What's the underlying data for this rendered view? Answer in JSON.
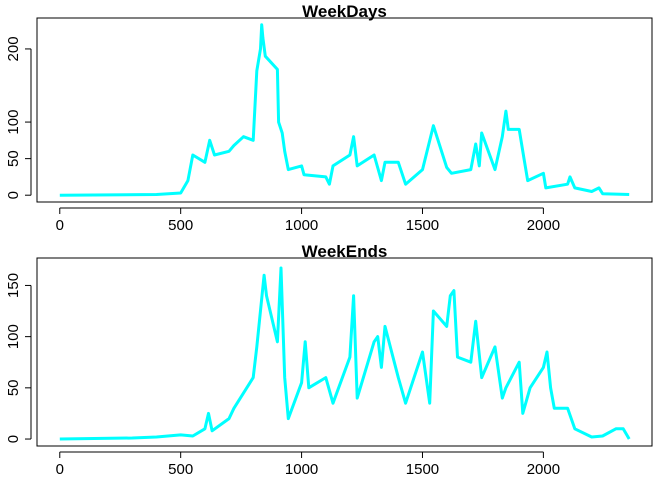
{
  "chart_data": [
    {
      "type": "line",
      "title": "WeekDays",
      "color": "#00FFFF",
      "x": [
        0,
        400,
        500,
        530,
        550,
        600,
        620,
        640,
        700,
        720,
        760,
        800,
        815,
        830,
        835,
        840,
        850,
        900,
        905,
        920,
        930,
        945,
        1000,
        1010,
        1100,
        1115,
        1130,
        1200,
        1215,
        1230,
        1300,
        1330,
        1345,
        1400,
        1430,
        1500,
        1545,
        1600,
        1620,
        1700,
        1720,
        1735,
        1745,
        1800,
        1830,
        1845,
        1855,
        1900,
        1920,
        1935,
        2000,
        2010,
        2100,
        2110,
        2130,
        2200,
        2230,
        2245,
        2355
      ],
      "values": [
        0,
        1,
        3,
        20,
        55,
        45,
        75,
        55,
        60,
        68,
        80,
        75,
        170,
        200,
        233,
        215,
        190,
        172,
        100,
        85,
        60,
        35,
        40,
        28,
        25,
        15,
        40,
        55,
        80,
        40,
        55,
        20,
        45,
        45,
        15,
        35,
        95,
        38,
        30,
        35,
        70,
        40,
        85,
        35,
        80,
        115,
        90,
        90,
        50,
        20,
        30,
        10,
        15,
        25,
        10,
        5,
        10,
        2,
        1
      ],
      "xlim": [
        -94.2,
        2449.2
      ],
      "ylim": [
        -9.3,
        242.3
      ],
      "xticks": [
        0,
        500,
        1000,
        1500,
        2000
      ],
      "yticks": [
        0,
        50,
        100,
        200
      ]
    },
    {
      "type": "line",
      "title": "WeekEnds",
      "color": "#00FFFF",
      "x": [
        0,
        300,
        400,
        500,
        550,
        600,
        615,
        630,
        700,
        720,
        800,
        815,
        845,
        855,
        900,
        915,
        930,
        945,
        1000,
        1015,
        1030,
        1100,
        1130,
        1200,
        1215,
        1230,
        1300,
        1315,
        1330,
        1345,
        1400,
        1430,
        1500,
        1530,
        1545,
        1600,
        1615,
        1630,
        1645,
        1700,
        1720,
        1745,
        1800,
        1830,
        1845,
        1900,
        1915,
        1945,
        2000,
        2015,
        2030,
        2045,
        2100,
        2130,
        2200,
        2245,
        2300,
        2330,
        2355
      ],
      "values": [
        0,
        1,
        2,
        4,
        3,
        10,
        25,
        8,
        20,
        30,
        60,
        90,
        160,
        140,
        95,
        167,
        60,
        20,
        55,
        95,
        50,
        60,
        35,
        80,
        140,
        40,
        95,
        100,
        70,
        110,
        60,
        35,
        85,
        35,
        125,
        110,
        140,
        145,
        80,
        75,
        115,
        60,
        90,
        40,
        50,
        75,
        25,
        50,
        70,
        85,
        50,
        30,
        30,
        10,
        2,
        3,
        10,
        10,
        0
      ],
      "xlim": [
        -94.2,
        2449.2
      ],
      "ylim": [
        -6.8,
        176.8
      ],
      "xticks": [
        0,
        500,
        1000,
        1500,
        2000
      ],
      "yticks": [
        0,
        50,
        100,
        150
      ]
    }
  ]
}
